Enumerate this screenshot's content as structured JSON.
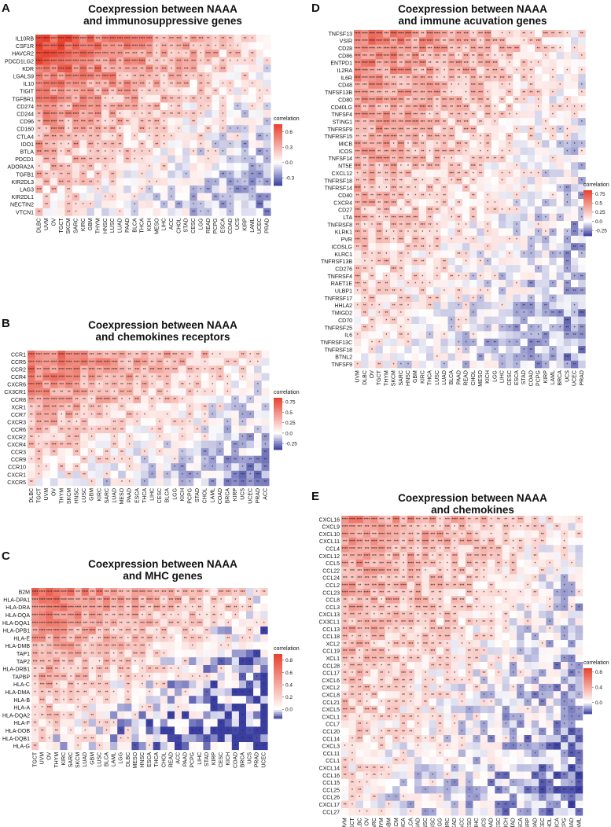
{
  "figure": {
    "background": "#ffffff"
  },
  "colors": {
    "low": "#3a3ea0",
    "mid": "#ffffff",
    "high": "#e8402d"
  },
  "panels": [
    {
      "letter": "A",
      "title_lines": [
        "Coexpression between NAAA",
        "and immunosuppressive genes"
      ],
      "chart_data": {
        "type": "heatmap",
        "rows": [
          "IL10RB",
          "CSF1R",
          "HAVCR2",
          "PDCD1LG2",
          "KDR",
          "LGALS9",
          "IL10",
          "TIGIT",
          "TGFBR1",
          "CD274",
          "CD244",
          "CD96",
          "CD160",
          "CTLA4",
          "IDO1",
          "BTLA",
          "PDCD1",
          "ADORA2A",
          "TGFB1",
          "KIR2DL3",
          "LAG3",
          "KIR2DL1",
          "NECTIN2",
          "VTCN1"
        ],
        "columns": [
          "DLBC",
          "UVM",
          "OV",
          "TGCT",
          "SKCM",
          "SARC",
          "KIRC",
          "GBM",
          "THYM",
          "HNSC",
          "LUSC",
          "LUAD",
          "PAAD",
          "BLCA",
          "THCA",
          "KICH",
          "MESO",
          "LIHC",
          "ACC",
          "CHOL",
          "STAD",
          "CESC",
          "LGG",
          "READ",
          "PCPG",
          "ESCA",
          "COAD",
          "UCS",
          "KIRP",
          "LAML",
          "UCEC",
          "PRAD"
        ],
        "gradient": 0.85,
        "legend": {
          "title": "correlation",
          "ticks": [
            0.6,
            0.3,
            0.0,
            -0.3
          ],
          "range": [
            -0.45,
            0.75
          ]
        }
      }
    },
    {
      "letter": "B",
      "title_lines": [
        "Coexpression between NAAA",
        "and chemokines receptors"
      ],
      "chart_data": {
        "type": "heatmap",
        "rows": [
          "CCR1",
          "CCR5",
          "CCR2",
          "CCR4",
          "CXCR6",
          "CX3CR1",
          "CCR8",
          "XCR1",
          "CCR7",
          "CXCR3",
          "CCR6",
          "CXCR2",
          "CXCR4",
          "CCR3",
          "CCR9",
          "CCR10",
          "CXCR1",
          "CXCR5"
        ],
        "columns": [
          "DLBC",
          "TGCT",
          "UVM",
          "OV",
          "THYM",
          "SKCM",
          "HNSC",
          "LUSC",
          "GBM",
          "KIRC",
          "SARC",
          "LUAD",
          "MESO",
          "PAAD",
          "ESCA",
          "THCA",
          "LIHC",
          "CESC",
          "BLCA",
          "LGG",
          "KICH",
          "PCPG",
          "STAD",
          "CHOL",
          "LAML",
          "COAD",
          "BRCA",
          "KIRP",
          "UCS",
          "UCEC",
          "PRAD",
          "ACC"
        ],
        "gradient": 0.8,
        "legend": {
          "title": "correlation",
          "ticks": [
            0.75,
            0.5,
            0.25,
            0.0,
            -0.25
          ],
          "range": [
            -0.4,
            0.85
          ]
        }
      }
    },
    {
      "letter": "C",
      "title_lines": [
        "Coexpression between NAAA",
        "and MHC genes"
      ],
      "chart_data": {
        "type": "heatmap",
        "rows": [
          "B2M",
          "HLA-DPA1",
          "HLA-DRA",
          "HLA-DQA",
          "HLA-DQA1",
          "HLA-DPB1",
          "HLA-E",
          "HLA-DMB",
          "TAP1",
          "TAP2",
          "HLA-DRB1",
          "TAPBP",
          "HLA-C",
          "HLA-DMA",
          "HLA-B",
          "HLA-A",
          "HLA-DQA2",
          "HLA-F",
          "HLA-DOB",
          "HLA-DQB1",
          "HLA-G"
        ],
        "columns": [
          "TGCT",
          "UVM",
          "OV",
          "THYM",
          "KIRC",
          "SARC",
          "SKCM",
          "LUAD",
          "GBM",
          "LUSC",
          "BLCA",
          "LAML",
          "LGG",
          "DLBC",
          "MESO",
          "HNSC",
          "ESCA",
          "THCA",
          "CHOL",
          "READ",
          "ACC",
          "PAAD",
          "PCPG",
          "LIHC",
          "STAD",
          "KIRP",
          "CESC",
          "KICH",
          "COAD",
          "BRCA",
          "UCS",
          "PRAD",
          "UCEC"
        ],
        "gradient": 0.8,
        "legend": {
          "title": "correlation",
          "ticks": [
            0.8,
            0.6,
            0.4,
            0.2,
            0.0
          ],
          "range": [
            -0.15,
            0.9
          ]
        }
      }
    },
    {
      "letter": "D",
      "title_lines": [
        "Coexpression between NAAA",
        "and immune acuvation genes"
      ],
      "chart_data": {
        "type": "heatmap",
        "rows": [
          "TNFSF13",
          "VSIR",
          "CD28",
          "CD86",
          "ENTPD1",
          "IL2RA",
          "IL6R",
          "CD48",
          "TNFSF13B",
          "CD80",
          "CD40LG",
          "TNFSF4",
          "STING1",
          "TNFRSF9",
          "TNFRSF15",
          "MICB",
          "ICOS",
          "TNFSF14",
          "NT5E",
          "CXCL12",
          "TNFRSF18",
          "TNFRSF14",
          "CD40",
          "CXCR4",
          "CD27",
          "LTA",
          "TNFRSF8",
          "KLRK1",
          "PVR",
          "ICOSLG",
          "KLRC1",
          "TNFRSF13B",
          "CD276",
          "TNFRSF4",
          "RAET1E",
          "ULBP1",
          "TNFRSF17",
          "HHLA2",
          "TMIGD2",
          "CD70",
          "TNFRSF25",
          "IL6",
          "TNFRSF13C",
          "TNFRSF18",
          "BTNL2",
          "TNFSF9"
        ],
        "columns": [
          "UVM",
          "DLBC",
          "OV",
          "TGCT",
          "THYM",
          "SKCM",
          "SARC",
          "HNSC",
          "GBM",
          "KIRC",
          "THCA",
          "LUSC",
          "LUAD",
          "BLCA",
          "PAAD",
          "READ",
          "CHOL",
          "MESO",
          "KICH",
          "LGG",
          "LIHC",
          "CESC",
          "ESCA",
          "STAD",
          "COAD",
          "PCPG",
          "KIRP",
          "LAML",
          "BRCA",
          "UCS",
          "UCEC",
          "PRAD"
        ],
        "gradient": 0.75,
        "legend": {
          "title": "correlation",
          "ticks": [
            0.75,
            0.5,
            0.25,
            0.0,
            -0.25
          ],
          "range": [
            -0.4,
            0.85
          ]
        }
      }
    },
    {
      "letter": "E",
      "title_lines": [
        "Coexpression between NAAA",
        "and chemokines"
      ],
      "chart_data": {
        "type": "heatmap",
        "rows": [
          "CXCL16",
          "CXCL9",
          "CXCL10",
          "CXCL11",
          "CCL4",
          "CXCL12",
          "CCL5",
          "CCL22",
          "CCL24",
          "CCL2",
          "CCL23",
          "CCL8",
          "CCL3",
          "CXCL13",
          "CX3CL1",
          "CCL13",
          "CCL18",
          "XCL2",
          "CCL19",
          "XCL1",
          "CCL28",
          "CCL17",
          "CXCL6",
          "CXCL2",
          "CXCL8",
          "CCL21",
          "CXCL5",
          "CXCL1",
          "CCL7",
          "CCL20",
          "CCL14",
          "CXCL3",
          "CCL11",
          "CCL1",
          "CXCL14",
          "CCL16",
          "CCL15",
          "CCL25",
          "CCL26",
          "CXCL17",
          "CCL27"
        ],
        "columns": [
          "UVM",
          "TGCT",
          "DLBC",
          "OV",
          "SARC",
          "THYM",
          "GBM",
          "SKCM",
          "THCA",
          "BLCA",
          "LUAD",
          "HNSC",
          "LUSC",
          "LGG",
          "KIRC",
          "READ",
          "ACC",
          "MESO",
          "LIHC",
          "UCS",
          "PAAD",
          "CESC",
          "KICH",
          "STAD",
          "ESCA",
          "KIRP",
          "COAD",
          "UCEC",
          "CHOL",
          "BRCA",
          "PCPG",
          "PRAD",
          "LAML"
        ],
        "gradient": 0.7,
        "legend": {
          "title": "correlation",
          "ticks": [
            0.8,
            0.4,
            0.0
          ],
          "range": [
            -0.3,
            0.9
          ]
        }
      }
    }
  ]
}
